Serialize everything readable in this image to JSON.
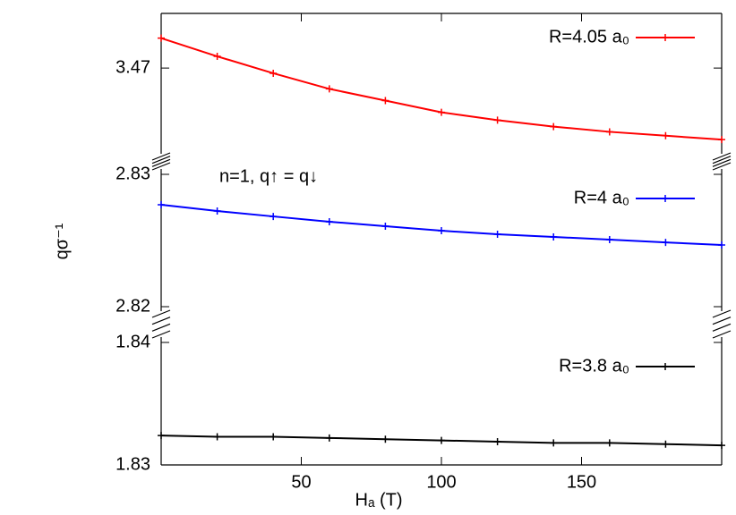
{
  "chart_data": [
    {
      "type": "line",
      "xlim": [
        0,
        200
      ],
      "ylim": [
        3.463,
        3.4742
      ],
      "yticks": [
        3.47
      ],
      "legend": "upper right",
      "x": [
        0,
        20,
        40,
        60,
        80,
        100,
        120,
        140,
        160,
        180,
        200
      ],
      "series": [
        {
          "name": "R=4.05 a₀",
          "color": "#ff0000",
          "values": [
            3.4723,
            3.4709,
            3.4696,
            3.4684,
            3.4675,
            3.4666,
            3.466,
            3.4655,
            3.4651,
            3.4648,
            3.4645
          ]
        }
      ]
    },
    {
      "type": "line",
      "xlim": [
        0,
        200
      ],
      "ylim": [
        2.82,
        2.83
      ],
      "yticks": [
        2.82,
        2.83
      ],
      "legend": "upper right",
      "ylabel": "qσ⁻¹",
      "annotation": "n=1, q↑ = q↓",
      "x": [
        0,
        20,
        40,
        60,
        80,
        100,
        120,
        140,
        160,
        180,
        200
      ],
      "series": [
        {
          "name": "R=4 a₀",
          "color": "#0000ff",
          "values": [
            2.8277,
            2.82723,
            2.82682,
            2.82642,
            2.82608,
            2.82574,
            2.82547,
            2.82527,
            2.82507,
            2.82486,
            2.82466
          ]
        }
      ]
    },
    {
      "type": "line",
      "xlim": [
        0,
        200
      ],
      "ylim": [
        1.83,
        1.84
      ],
      "yticks": [
        1.83,
        1.84
      ],
      "legend": "upper right",
      "xlabel": "Hₐ (T)",
      "xticks": [
        50,
        100,
        150
      ],
      "x": [
        0,
        20,
        40,
        60,
        80,
        100,
        120,
        140,
        160,
        180,
        200
      ],
      "series": [
        {
          "name": "R=3.8 a₀",
          "color": "#000000",
          "values": [
            1.8324,
            1.8323,
            1.8323,
            1.8322,
            1.8321,
            1.832,
            1.8319,
            1.8318,
            1.8318,
            1.8317,
            1.8316
          ]
        }
      ]
    }
  ]
}
